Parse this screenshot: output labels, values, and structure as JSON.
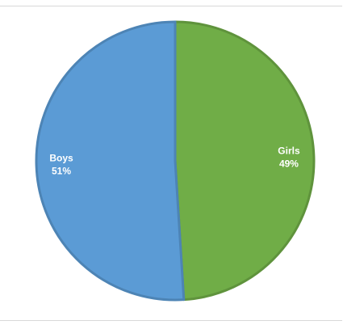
{
  "chart_data": {
    "type": "pie",
    "categories": [
      "Boys",
      "Girls"
    ],
    "values": [
      51,
      49
    ],
    "labels": [
      {
        "name": "Boys",
        "value": "51%"
      },
      {
        "name": "Girls",
        "value": "49%"
      }
    ],
    "colors": {
      "Boys": "#5b9bd5",
      "Girls": "#70ad47"
    },
    "title": "",
    "legend": "none",
    "start": "top",
    "direction": "clockwise",
    "first_slice": "Girls"
  }
}
